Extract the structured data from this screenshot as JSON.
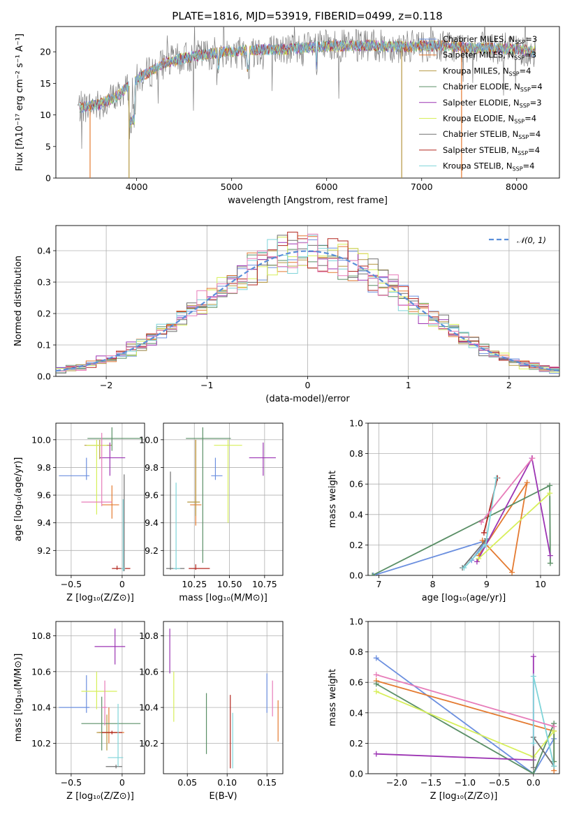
{
  "figure_title": "PLATE=1816, MJD=53919, FIBERID=0499, z=0.118",
  "colors": {
    "Chabrier MILES": "#6b8fdf",
    "Salpeter MILES": "#e47a30",
    "Kroupa MILES": "#b59740",
    "Chabrier ELODIE": "#5a8f66",
    "Salpeter ELODIE": "#9c34b3",
    "Kroupa ELODIE": "#d7ef5a",
    "Chabrier STELIB": "#707070",
    "Salpeter STELIB": "#b3261e",
    "Kroupa STELIB": "#7fd4d9",
    "pink": "#e77cb9",
    "normal": "#5b8fd9"
  },
  "chart_data": [
    {
      "id": "spectrum",
      "type": "line",
      "xlabel": "wavelength [Angstrom, rest frame]",
      "ylabel": "Flux [fλ10⁻¹⁷ erg cm⁻² s⁻¹ A⁻¹]",
      "xlim": [
        3150,
        8450
      ],
      "ylim": [
        0,
        24
      ],
      "xticks": [
        4000,
        5000,
        6000,
        7000,
        8000
      ],
      "yticks": [
        0,
        5,
        10,
        15,
        20
      ],
      "legend": "right",
      "continuum": {
        "x": [
          3400,
          3600,
          3800,
          3950,
          4100,
          4300,
          4500,
          4800,
          5200,
          5600,
          6000,
          6400,
          6800,
          7200,
          7600,
          8000,
          8200
        ],
        "y": [
          11.2,
          11.6,
          13.0,
          15.0,
          16.5,
          18.3,
          19.0,
          19.8,
          20.3,
          20.4,
          20.9,
          21.0,
          20.8,
          21.0,
          20.6,
          20.4,
          20.0
        ]
      },
      "drops": [
        {
          "x": 3510,
          "y": 0,
          "series": "Salpeter MILES"
        },
        {
          "x": 3920,
          "y": 0,
          "series": "Kroupa MILES"
        },
        {
          "x": 6790,
          "y": 0,
          "series": "Kroupa MILES"
        },
        {
          "x": 7420,
          "y": 0,
          "series": "Salpeter MILES"
        }
      ],
      "series": [
        {
          "name": "Chabrier MILES",
          "nssp": "3"
        },
        {
          "name": "Salpeter MILES",
          "nssp": "3"
        },
        {
          "name": "Kroupa MILES",
          "nssp": "4"
        },
        {
          "name": "Chabrier ELODIE",
          "nssp": "4"
        },
        {
          "name": "Salpeter ELODIE",
          "nssp": "3"
        },
        {
          "name": "Kroupa ELODIE",
          "nssp": "4"
        },
        {
          "name": "Chabrier STELIB",
          "nssp": "4"
        },
        {
          "name": "Salpeter STELIB",
          "nssp": "4"
        },
        {
          "name": "Kroupa STELIB",
          "nssp": "4"
        }
      ]
    },
    {
      "id": "residuals",
      "type": "histogram",
      "xlabel": "(data-model)/error",
      "ylabel": "Normed distribution",
      "xlim": [
        -2.5,
        2.5
      ],
      "ylim": [
        0,
        0.48
      ],
      "xticks": [
        -2,
        -1,
        0,
        1,
        2
      ],
      "yticks": [
        0.0,
        0.1,
        0.2,
        0.3,
        0.4
      ],
      "bin_width": 0.1,
      "legend": "top-right",
      "legend_label": "𝒩(0, 1)",
      "overlay": {
        "mean": 0,
        "std": 1
      }
    },
    {
      "id": "age_vs_Z",
      "type": "errorbar",
      "xlabel": "Z [log₁₀(Z/Z⊙)]",
      "ylabel": "age  [log₁₀(age/yr)]",
      "xlim": [
        -0.65,
        0.22
      ],
      "ylim": [
        9.02,
        10.12
      ],
      "xticks": [
        -0.5,
        0.0
      ],
      "yticks": [
        9.2,
        9.4,
        9.6,
        9.8,
        10.0
      ],
      "points": [
        {
          "series": "Chabrier MILES",
          "x": -0.35,
          "xerr": [
            0.27,
            0.03
          ],
          "y": 9.74,
          "yerr": [
            0.03,
            0.13
          ]
        },
        {
          "series": "Salpeter MILES",
          "x": -0.1,
          "xerr": [
            0.1,
            0.07
          ],
          "y": 9.53,
          "yerr": [
            0.1,
            0.14
          ]
        },
        {
          "series": "Kroupa MILES",
          "x": -0.22,
          "xerr": [
            0.15,
            0.12
          ],
          "y": 9.96,
          "yerr": [
            0.1,
            0.04
          ]
        },
        {
          "series": "Chabrier ELODIE",
          "x": -0.1,
          "xerr": [
            0.24,
            0.3
          ],
          "y": 10.01,
          "yerr": [
            0.09,
            0.08
          ]
        },
        {
          "series": "Salpeter ELODIE",
          "x": -0.12,
          "xerr": [
            0.1,
            0.15
          ],
          "y": 9.87,
          "yerr": [
            0.13,
            0.11
          ]
        },
        {
          "series": "Kroupa ELODIE",
          "x": -0.25,
          "xerr": [
            0.1,
            0.1
          ],
          "y": 9.96,
          "yerr": [
            0.5,
            0.04
          ]
        },
        {
          "series": "Chabrier STELIB",
          "x": 0.02,
          "xerr": [
            0.02,
            0.02
          ],
          "y": 9.07,
          "yerr": [
            0.02,
            0.68
          ]
        },
        {
          "series": "Salpeter STELIB",
          "x": -0.05,
          "xerr": [
            0.05,
            0.13
          ],
          "y": 9.07,
          "yerr": [
            0.01,
            0.02
          ]
        },
        {
          "series": "Kroupa STELIB",
          "x": 0.01,
          "xerr": [
            0.02,
            0.02
          ],
          "y": 9.07,
          "yerr": [
            0.02,
            0.5
          ]
        },
        {
          "series": "pink",
          "x": -0.2,
          "xerr": [
            0.2,
            0.1
          ],
          "y": 9.55,
          "yerr": [
            0.03,
            0.5
          ]
        }
      ]
    },
    {
      "id": "age_vs_mass",
      "type": "errorbar",
      "xlabel": "mass [log₁₀(M/M⊙)]",
      "ylabel": "",
      "xlim": [
        10.03,
        10.88
      ],
      "ylim": [
        9.02,
        10.12
      ],
      "xticks": [
        10.25,
        10.5,
        10.75
      ],
      "xticklabels": [
        "10.25",
        "10.50",
        "10.75"
      ],
      "yticks": [
        9.2,
        9.4,
        9.6,
        9.8,
        10.0
      ],
      "points": [
        {
          "series": "Chabrier MILES",
          "x": 10.4,
          "xerr": [
            0.03,
            0.05
          ],
          "y": 9.74,
          "yerr": [
            0.03,
            0.13
          ]
        },
        {
          "series": "Salpeter MILES",
          "x": 10.26,
          "xerr": [
            0.04,
            0.04
          ],
          "y": 9.53,
          "yerr": [
            0.15,
            0.47
          ]
        },
        {
          "series": "Kroupa MILES",
          "x": 10.26,
          "xerr": [
            0.06,
            0.03
          ],
          "y": 9.55,
          "yerr": [
            0.1,
            0.45
          ]
        },
        {
          "series": "Chabrier ELODIE",
          "x": 10.31,
          "xerr": [
            0.12,
            0.2
          ],
          "y": 10.01,
          "yerr": [
            0.9,
            0.08
          ]
        },
        {
          "series": "Salpeter ELODIE",
          "x": 10.74,
          "xerr": [
            0.1,
            0.09
          ],
          "y": 9.87,
          "yerr": [
            0.13,
            0.11
          ]
        },
        {
          "series": "Kroupa ELODIE",
          "x": 10.49,
          "xerr": [
            0.1,
            0.1
          ],
          "y": 9.96,
          "yerr": [
            0.56,
            0.04
          ]
        },
        {
          "series": "Chabrier STELIB",
          "x": 10.08,
          "xerr": [
            0.03,
            0.1
          ],
          "y": 9.07,
          "yerr": [
            0.01,
            0.7
          ]
        },
        {
          "series": "Salpeter STELIB",
          "x": 10.26,
          "xerr": [
            0.05,
            0.1
          ],
          "y": 9.07,
          "yerr": [
            0.01,
            0.03
          ]
        },
        {
          "series": "Kroupa STELIB",
          "x": 10.12,
          "xerr": [
            0.02,
            0.03
          ],
          "y": 9.07,
          "yerr": [
            0.01,
            0.62
          ]
        }
      ]
    },
    {
      "id": "weight_vs_age",
      "type": "line",
      "xlabel": "age  [log₁₀(age/yr)]",
      "ylabel": "mass weight",
      "xlim": [
        6.8,
        10.35
      ],
      "ylim": [
        0,
        1.0
      ],
      "xticks": [
        7,
        8,
        9,
        10
      ],
      "yticks": [
        0.0,
        0.2,
        0.4,
        0.6,
        0.8,
        1.0
      ],
      "series": [
        {
          "series": "Chabrier MILES",
          "x": [
            6.9,
            9.0,
            8.72
          ],
          "y": [
            0.0,
            0.23,
            0.1
          ]
        },
        {
          "series": "Salpeter MILES",
          "x": [
            8.92,
            9.47,
            9.75,
            8.85
          ],
          "y": [
            0.23,
            0.02,
            0.61,
            0.13
          ]
        },
        {
          "series": "Chabrier ELODIE",
          "x": [
            6.88,
            10.17,
            10.18
          ],
          "y": [
            0.0,
            0.59,
            0.08
          ]
        },
        {
          "series": "Salpeter ELODIE",
          "x": [
            8.82,
            9.84,
            10.18
          ],
          "y": [
            0.09,
            0.77,
            0.13
          ]
        },
        {
          "series": "Kroupa ELODIE",
          "x": [
            8.85,
            10.17
          ],
          "y": [
            0.11,
            0.54
          ]
        },
        {
          "series": "Chabrier STELIB",
          "x": [
            8.55,
            9.0
          ],
          "y": [
            0.05,
            0.24
          ]
        },
        {
          "series": "Salpeter STELIB",
          "x": [
            8.95,
            9.2
          ],
          "y": [
            0.28,
            0.64
          ]
        },
        {
          "series": "Kroupa STELIB",
          "x": [
            8.58,
            8.98,
            9.18
          ],
          "y": [
            0.05,
            0.2,
            0.64
          ]
        },
        {
          "series": "pink",
          "x": [
            8.9,
            9.85
          ],
          "y": [
            0.35,
            0.77
          ]
        }
      ]
    },
    {
      "id": "mass_vs_Z",
      "type": "errorbar",
      "xlabel": "Z [log₁₀(Z/Z⊙)]",
      "ylabel": "mass [log₁₀(M/M⊙)]",
      "xlim": [
        -0.65,
        0.22
      ],
      "ylim": [
        10.03,
        10.88
      ],
      "xticks": [
        -0.5,
        0.0
      ],
      "yticks": [
        10.2,
        10.4,
        10.6,
        10.8
      ],
      "points": [
        {
          "series": "Chabrier MILES",
          "x": -0.35,
          "xerr": [
            0.27,
            0.03
          ],
          "y": 10.4,
          "yerr": [
            0.03,
            0.18
          ]
        },
        {
          "series": "Salpeter MILES",
          "x": -0.13,
          "xerr": [
            0.1,
            0.15
          ],
          "y": 10.26,
          "yerr": [
            0.06,
            0.14
          ]
        },
        {
          "series": "Kroupa MILES",
          "x": -0.15,
          "xerr": [
            0.1,
            0.1
          ],
          "y": 10.26,
          "yerr": [
            0.1,
            0.1
          ]
        },
        {
          "series": "Chabrier ELODIE",
          "x": -0.2,
          "xerr": [
            0.2,
            0.38
          ],
          "y": 10.31,
          "yerr": [
            0.15,
            0.15
          ]
        },
        {
          "series": "Salpeter ELODIE",
          "x": -0.07,
          "xerr": [
            0.2,
            0.1
          ],
          "y": 10.74,
          "yerr": [
            0.1,
            0.1
          ]
        },
        {
          "series": "Kroupa ELODIE",
          "x": -0.25,
          "xerr": [
            0.15,
            0.2
          ],
          "y": 10.49,
          "yerr": [
            0.1,
            0.11
          ]
        },
        {
          "series": "Chabrier STELIB",
          "x": -0.06,
          "xerr": [
            0.1,
            0.06
          ],
          "y": 10.07,
          "yerr": [
            0.01,
            0.01
          ]
        },
        {
          "series": "Salpeter STELIB",
          "x": -0.1,
          "xerr": [
            0.1,
            0.1
          ],
          "y": 10.26,
          "yerr": [
            0.01,
            0.01
          ]
        },
        {
          "series": "Kroupa STELIB",
          "x": -0.04,
          "xerr": [
            0.1,
            0.05
          ],
          "y": 10.12,
          "yerr": [
            0.05,
            0.3
          ]
        },
        {
          "series": "pink",
          "x": -0.17,
          "xerr": [
            0.03,
            0.02
          ],
          "y": 10.4,
          "yerr": [
            0.1,
            0.15
          ]
        }
      ]
    },
    {
      "id": "mass_vs_EBV",
      "type": "errorbar",
      "xlabel": "E(B-V)",
      "ylabel": "",
      "xlim": [
        0.02,
        0.17
      ],
      "ylim": [
        10.03,
        10.88
      ],
      "xticks": [
        0.05,
        0.1,
        0.15
      ],
      "xticklabels": [
        "0.05",
        "0.10",
        "0.15"
      ],
      "yticks": [
        10.2,
        10.4,
        10.6,
        10.8
      ],
      "points": [
        {
          "series": "Salpeter ELODIE",
          "x": 0.028,
          "y": 10.74,
          "yerr": [
            0.15,
            0.1
          ]
        },
        {
          "series": "Kroupa ELODIE",
          "x": 0.033,
          "y": 10.49,
          "yerr": [
            0.17,
            0.11
          ]
        },
        {
          "series": "Chabrier ELODIE",
          "x": 0.074,
          "y": 10.31,
          "yerr": [
            0.17,
            0.17
          ]
        },
        {
          "series": "Salpeter STELIB",
          "x": 0.104,
          "y": 10.26,
          "yerr": [
            0.2,
            0.21
          ]
        },
        {
          "series": "Kroupa STELIB",
          "x": 0.107,
          "y": 10.26,
          "yerr": [
            0.2,
            0.11
          ]
        },
        {
          "series": "Chabrier MILES",
          "x": 0.15,
          "y": 10.47,
          "yerr": [
            0.1,
            0.12
          ]
        },
        {
          "series": "pink",
          "x": 0.157,
          "y": 10.45,
          "yerr": [
            0.1,
            0.1
          ]
        },
        {
          "series": "Salpeter MILES",
          "x": 0.164,
          "y": 10.33,
          "yerr": [
            0.12,
            0.11
          ]
        }
      ]
    },
    {
      "id": "weight_vs_Z",
      "type": "line",
      "xlabel": "Z [log₁₀(Z/Z⊙)]",
      "ylabel": "mass weight",
      "xlim": [
        -2.42,
        0.38
      ],
      "ylim": [
        0,
        1.0
      ],
      "xticks": [
        -2.0,
        -1.5,
        -1.0,
        -0.5,
        0.0
      ],
      "xticklabels": [
        "−2.0",
        "−1.5",
        "−1.0",
        "−0.5",
        "0.0"
      ],
      "yticks": [
        0.0,
        0.2,
        0.4,
        0.6,
        0.8,
        1.0
      ],
      "series": [
        {
          "series": "Chabrier MILES",
          "x": [
            -2.3,
            0.0,
            0.3
          ],
          "y": [
            0.76,
            0.0,
            0.23
          ]
        },
        {
          "series": "Salpeter MILES",
          "x": [
            -2.3,
            0.3,
            0.3
          ],
          "y": [
            0.61,
            0.28,
            0.02
          ]
        },
        {
          "series": "Chabrier ELODIE",
          "x": [
            -2.3,
            0.0,
            0.3,
            0.3
          ],
          "y": [
            0.59,
            0.0,
            0.33,
            0.08
          ]
        },
        {
          "series": "Salpeter ELODIE",
          "x": [
            -2.3,
            0.0,
            0.0
          ],
          "y": [
            0.13,
            0.09,
            0.77
          ]
        },
        {
          "series": "Kroupa ELODIE",
          "x": [
            -2.3,
            0.0,
            0.3
          ],
          "y": [
            0.54,
            0.11,
            0.28
          ]
        },
        {
          "series": "Chabrier STELIB",
          "x": [
            0.0,
            0.0,
            0.3
          ],
          "y": [
            0.04,
            0.24,
            0.05
          ]
        },
        {
          "series": "Kroupa STELIB",
          "x": [
            0.0,
            0.0,
            0.3
          ],
          "y": [
            0.2,
            0.64,
            0.05
          ]
        },
        {
          "series": "pink",
          "x": [
            -2.3,
            0.3
          ],
          "y": [
            0.65,
            0.31
          ]
        }
      ]
    }
  ]
}
